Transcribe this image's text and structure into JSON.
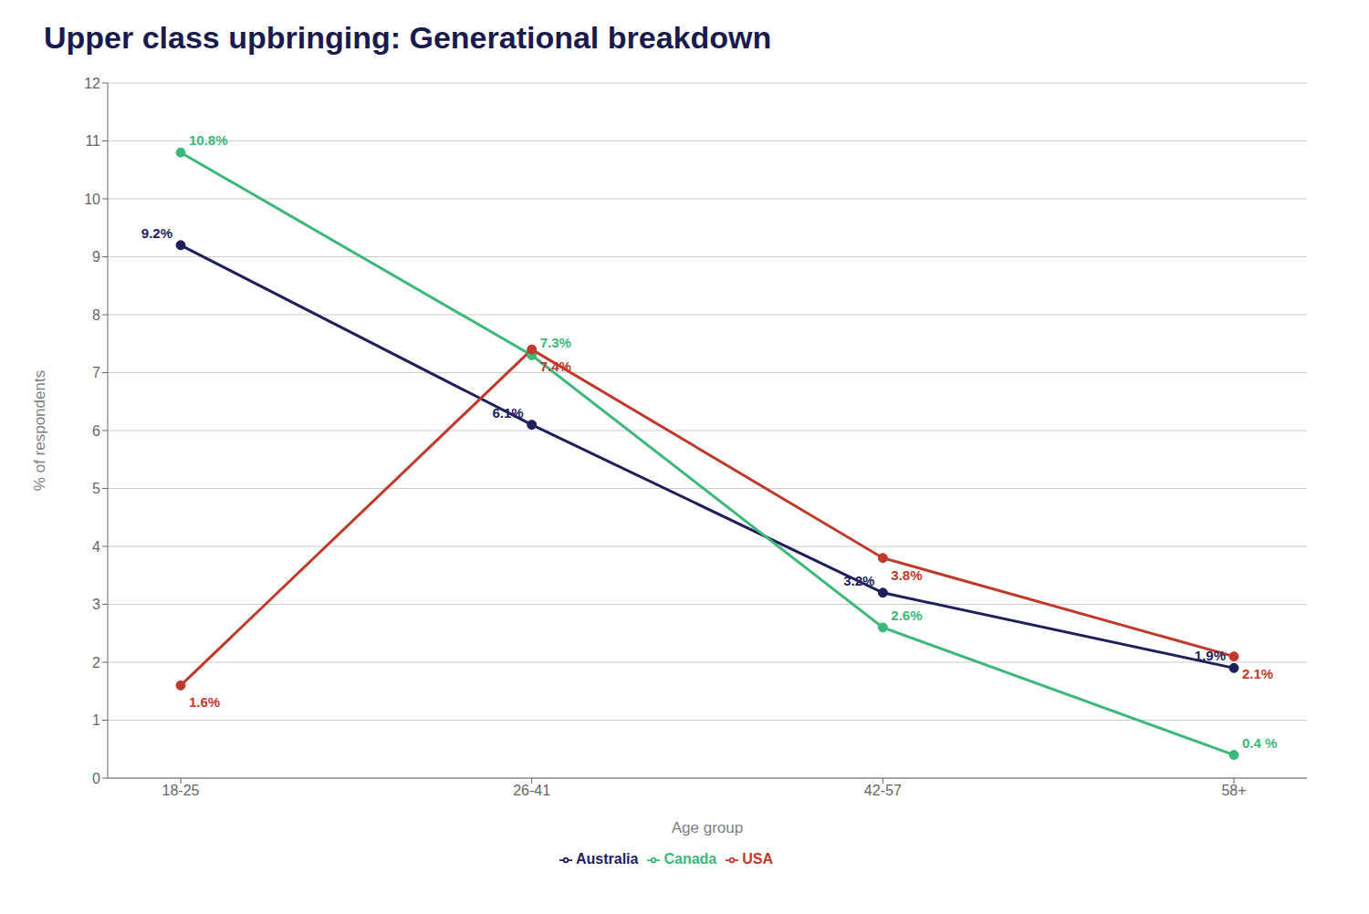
{
  "chart_data": {
    "type": "line",
    "title": "Upper class upbringing: Generational breakdown",
    "xlabel": "Age group",
    "ylabel": "% of respondents",
    "categories": [
      "18-25",
      "26-41",
      "42-57",
      "58+"
    ],
    "series": [
      {
        "name": "Australia",
        "color": "#1f1f5c",
        "values": [
          9.2,
          6.1,
          3.2,
          1.9
        ],
        "value_labels": [
          "9.2%",
          "6.1%",
          "3.2%",
          "1.9%"
        ]
      },
      {
        "name": "Canada",
        "color": "#3db87a",
        "values": [
          10.8,
          7.3,
          2.6,
          0.4
        ],
        "value_labels": [
          "10.8%",
          "7.3%",
          "2.6%",
          "0.4 %"
        ]
      },
      {
        "name": "USA",
        "color": "#c0392b",
        "values": [
          1.6,
          7.4,
          3.8,
          2.1
        ],
        "value_labels": [
          "1.6%",
          "7.4%",
          "3.8%",
          "2.1%"
        ]
      }
    ],
    "ylim": [
      0,
      12
    ],
    "yticks": [
      0,
      1,
      2,
      3,
      4,
      5,
      6,
      7,
      8,
      9,
      10,
      11,
      12
    ],
    "grid": true,
    "legend": "bottom",
    "data_labels": true,
    "marker": "circle"
  }
}
